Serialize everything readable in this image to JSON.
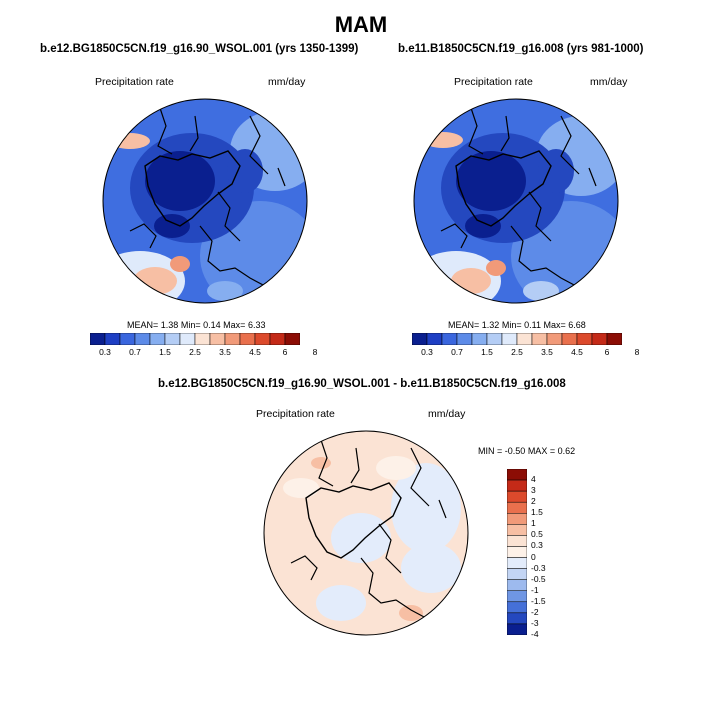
{
  "title": "MAM",
  "maps": [
    {
      "title": "b.e12.BG1850C5CN.f19_g16.90_WSOL.001 (yrs 1350-1399)",
      "variable": "Precipitation rate",
      "units": "mm/day",
      "stats": {
        "mean_label": "MEAN=",
        "mean": "1.38",
        "min_label": "Min=",
        "min": "0.14",
        "max_label": "Max=",
        "max": "6.33"
      }
    },
    {
      "title": "b.e11.B1850C5CN.f19_g16.008 (yrs 981-1000)",
      "variable": "Precipitation rate",
      "units": "mm/day",
      "stats": {
        "mean_label": "MEAN=",
        "mean": "1.32",
        "min_label": "Min=",
        "min": "0.11",
        "max_label": "Max=",
        "max": "6.68"
      }
    },
    {
      "title": "b.e12.BG1850C5CN.f19_g16.90_WSOL.001 - b.e11.B1850C5CN.f19_g16.008",
      "variable": "Precipitation rate",
      "units": "mm/day",
      "stats": {
        "min_label": "MIN =",
        "min": "-0.50",
        "max_label": "MAX =",
        "max": "0.62"
      }
    }
  ],
  "colorbar_horizontal": {
    "labels": [
      "0.3",
      "0.7",
      "1.5",
      "2.5",
      "3.5",
      "4.5",
      "6",
      "8"
    ],
    "colors": [
      "#0a1f8f",
      "#1e3fc4",
      "#3a66de",
      "#5d8be8",
      "#86aef0",
      "#b4cdf5",
      "#dfeafb",
      "#fbe3d4",
      "#f7bfa4",
      "#f19a79",
      "#e9704d",
      "#dc4a2c",
      "#c42a18",
      "#8c0d05"
    ]
  },
  "colorbar_vertical": {
    "labels": [
      "4",
      "3",
      "2",
      "1.5",
      "1",
      "0.5",
      "0.3",
      "0",
      "-0.3",
      "-0.5",
      "-1",
      "-1.5",
      "-2",
      "-3",
      "-4"
    ],
    "colors": [
      "#8c0d05",
      "#c42a18",
      "#dc4a2c",
      "#e9704d",
      "#f19a79",
      "#f7bfa4",
      "#fbe3d4",
      "#fdf1e8",
      "#e3ecfb",
      "#c3d5f4",
      "#9dbaee",
      "#6f96e4",
      "#4570d8",
      "#2448bf",
      "#0a1f8f"
    ]
  }
}
